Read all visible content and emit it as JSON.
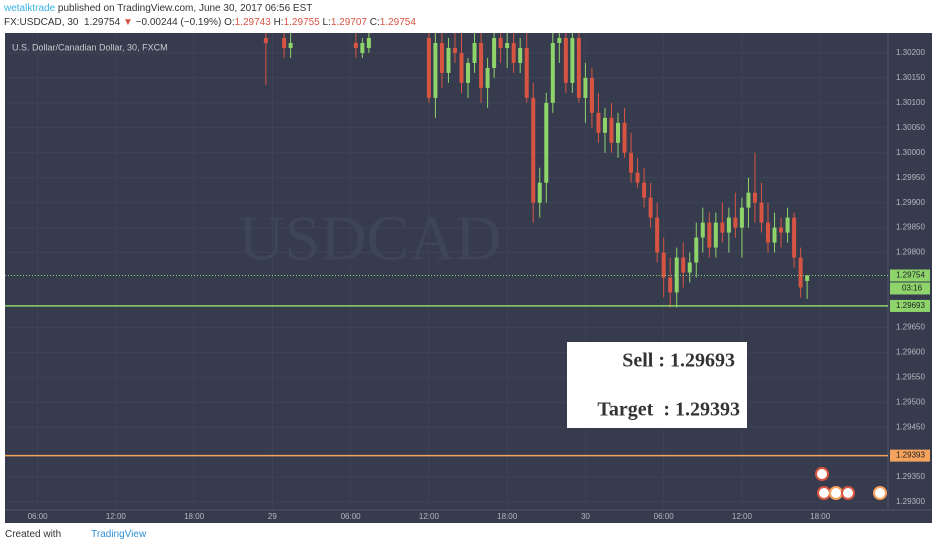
{
  "header": {
    "author": "wetalktrade",
    "published": "published on TradingView.com, June 30, 2017 06:56 EST",
    "symbol": "FX:USDCAD, 30",
    "last": "1.29754",
    "arrow": "▼",
    "change": "−0.00244 (−0.19%)",
    "ohlc": [
      {
        "key": "O:",
        "value": "1.29743"
      },
      {
        "key": "H:",
        "value": "1.29755"
      },
      {
        "key": "L:",
        "value": "1.29707"
      },
      {
        "key": "C:",
        "value": "1.29754"
      }
    ]
  },
  "chart_data": {
    "type": "candlestick",
    "title": "U.S. Dollar/Canadian Dollar, 30, FXCM",
    "watermark": "USDCAD",
    "up_color": "#8fd46a",
    "down_color": "#d75442",
    "grid": true,
    "x": [
      23.5,
      24.9,
      25.4,
      30.4,
      30.9,
      31.4,
      36,
      36.5,
      37,
      37.5,
      38,
      38.5,
      39,
      39.5,
      40,
      40.5,
      41,
      41.5,
      42,
      42.5,
      43,
      43.5,
      44,
      44.5,
      45,
      45.5,
      46,
      46.5,
      47,
      47.5,
      48,
      48.5,
      49,
      49.5,
      50,
      50.5,
      51,
      51.5,
      52,
      52.5,
      53,
      53.5,
      54,
      54.5,
      55,
      55.5,
      56,
      56.5,
      57,
      57.5,
      58,
      58.5,
      59,
      59.5,
      60,
      60.5,
      61,
      61.5,
      62,
      62.5,
      63,
      63.5,
      64,
      64.5,
      65
    ],
    "open": [
      1.3023,
      1.3023,
      1.3021,
      1.3022,
      1.302,
      1.3021,
      1.3023,
      1.3011,
      1.3022,
      1.3016,
      1.3021,
      1.302,
      1.3014,
      1.3018,
      1.3022,
      1.3013,
      1.3017,
      1.3023,
      1.3021,
      1.3022,
      1.3018,
      1.3021,
      1.3011,
      1.299,
      1.2994,
      1.301,
      1.3022,
      1.3023,
      1.3014,
      1.3023,
      1.3011,
      1.3015,
      1.3008,
      1.3004,
      1.3007,
      1.3002,
      1.3006,
      1.3,
      1.2996,
      1.2994,
      1.2991,
      1.2987,
      1.298,
      1.2975,
      1.2972,
      1.2979,
      1.2976,
      1.2978,
      1.2983,
      1.2986,
      1.2981,
      1.2986,
      1.2984,
      1.2987,
      1.2985,
      1.2989,
      1.2992,
      1.299,
      1.2986,
      1.2982,
      1.2985,
      1.2984,
      1.2987,
      1.2979,
      1.29743
    ],
    "high": [
      1.3024,
      1.3024,
      1.3024,
      1.3024,
      1.3023,
      1.3024,
      1.3024,
      1.3024,
      1.3024,
      1.3023,
      1.3024,
      1.3024,
      1.3019,
      1.3024,
      1.3024,
      1.3019,
      1.3024,
      1.3024,
      1.3024,
      1.3024,
      1.3023,
      1.3024,
      1.3014,
      1.2997,
      1.3012,
      1.3024,
      1.3024,
      1.3024,
      1.3024,
      1.3024,
      1.3018,
      1.3017,
      1.3012,
      1.3009,
      1.301,
      1.3008,
      1.3009,
      1.3004,
      1.2999,
      1.2997,
      1.2994,
      1.299,
      1.2983,
      1.2979,
      1.2981,
      1.2982,
      1.298,
      1.2986,
      1.2989,
      1.2988,
      1.2988,
      1.299,
      1.2989,
      1.2992,
      1.2991,
      1.2995,
      1.3,
      1.2994,
      1.299,
      1.2988,
      1.2987,
      1.2989,
      1.2988,
      1.2981,
      1.29755
    ],
    "low": [
      1.30136,
      1.3019,
      1.3019,
      1.3019,
      1.3019,
      1.302,
      1.301,
      1.3007,
      1.3013,
      1.3014,
      1.3018,
      1.3012,
      1.3011,
      1.3016,
      1.301,
      1.3009,
      1.3015,
      1.3018,
      1.3017,
      1.3016,
      1.3016,
      1.301,
      1.2986,
      1.2987,
      1.299,
      1.3008,
      1.3018,
      1.3012,
      1.3012,
      1.301,
      1.3006,
      1.3005,
      1.3002,
      1.3,
      1.3,
      1.2999,
      1.2999,
      1.2994,
      1.2993,
      1.2989,
      1.2985,
      1.2978,
      1.2971,
      1.2969,
      1.2969,
      1.2973,
      1.2974,
      1.2975,
      1.298,
      1.2979,
      1.2979,
      1.2982,
      1.298,
      1.2983,
      1.2979,
      1.2985,
      1.2986,
      1.2984,
      1.298,
      1.298,
      1.2981,
      1.2982,
      1.2977,
      1.2971,
      1.29707
    ],
    "close": [
      1.3022,
      1.3021,
      1.3022,
      1.3021,
      1.3022,
      1.3023,
      1.3011,
      1.3022,
      1.3016,
      1.3021,
      1.302,
      1.3014,
      1.3018,
      1.3022,
      1.3013,
      1.3017,
      1.3023,
      1.3021,
      1.3022,
      1.3018,
      1.3021,
      1.3011,
      1.299,
      1.2994,
      1.301,
      1.3022,
      1.3023,
      1.3014,
      1.3023,
      1.3011,
      1.3015,
      1.3008,
      1.3004,
      1.3007,
      1.3002,
      1.3006,
      1.3,
      1.2996,
      1.2994,
      1.2991,
      1.2987,
      1.298,
      1.2975,
      1.2972,
      1.2979,
      1.2976,
      1.2978,
      1.2983,
      1.2986,
      1.2981,
      1.2986,
      1.2984,
      1.2987,
      1.2985,
      1.2989,
      1.2992,
      1.299,
      1.2986,
      1.2982,
      1.2985,
      1.2984,
      1.2987,
      1.2979,
      1.2973,
      1.29754
    ],
    "xlim": [
      3.5,
      71.2
    ],
    "xticks": [
      {
        "value": 6,
        "label": "06:00"
      },
      {
        "value": 12,
        "label": "12:00"
      },
      {
        "value": 18,
        "label": "18:00"
      },
      {
        "value": 24,
        "label": "29"
      },
      {
        "value": 30,
        "label": "06:00"
      },
      {
        "value": 36,
        "label": "12:00"
      },
      {
        "value": 42,
        "label": "18:00"
      },
      {
        "value": 48,
        "label": "30"
      },
      {
        "value": 54,
        "label": "06:00"
      },
      {
        "value": 60,
        "label": "12:00"
      },
      {
        "value": 66,
        "label": "18:00"
      }
    ],
    "ylim": [
      1.29284,
      1.3024
    ],
    "yticks": [
      {
        "value": 1.302,
        "label": "1.30200"
      },
      {
        "value": 1.3015,
        "label": "1.30150"
      },
      {
        "value": 1.301,
        "label": "1.30100"
      },
      {
        "value": 1.3005,
        "label": "1.30050"
      },
      {
        "value": 1.3,
        "label": "1.30000"
      },
      {
        "value": 1.2995,
        "label": "1.29950"
      },
      {
        "value": 1.299,
        "label": "1.29900"
      },
      {
        "value": 1.2985,
        "label": "1.29850"
      },
      {
        "value": 1.298,
        "label": "1.29800"
      },
      {
        "value": 1.2965,
        "label": "1.29650"
      },
      {
        "value": 1.296,
        "label": "1.29600"
      },
      {
        "value": 1.2955,
        "label": "1.29550"
      },
      {
        "value": 1.295,
        "label": "1.29500"
      },
      {
        "value": 1.2945,
        "label": "1.29450"
      },
      {
        "value": 1.2935,
        "label": "1.29350"
      },
      {
        "value": 1.293,
        "label": "1.29300"
      }
    ],
    "last_price": {
      "value": 1.29754,
      "label": "1.29754",
      "color": "#8fd46a"
    },
    "countdown": "03:16",
    "levels": [
      {
        "value": 1.29693,
        "label": "1.29693",
        "color": "#8fd46a"
      },
      {
        "value": 1.29393,
        "label": "1.29393",
        "color": "#f5a25d"
      }
    ],
    "annotations": [
      "Sell : 1.29693",
      "Target  : 1.29393"
    ]
  },
  "footer": {
    "created": "Created with",
    "brand": "TradingView"
  }
}
